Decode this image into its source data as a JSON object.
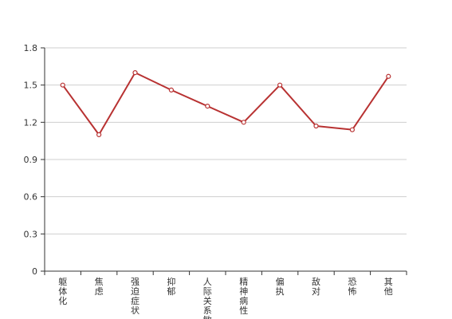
{
  "chart_data": {
    "type": "line",
    "title": "",
    "xlabel": "",
    "ylabel": "",
    "categories": [
      "躯体化",
      "焦虑",
      "强迫症状",
      "抑郁",
      "人际关系敏感",
      "精神病性",
      "偏执",
      "敌对",
      "恐怖",
      "其他"
    ],
    "y_ticks": [
      "0",
      "0.3",
      "0.6",
      "0.9",
      "1.2",
      "1.5",
      "1.8"
    ],
    "ylim": [
      0,
      1.8
    ],
    "grid": true,
    "legend": "none",
    "series": [
      {
        "values": [
          1.5,
          1.1,
          1.6,
          1.46,
          1.33,
          1.2,
          1.5,
          1.17,
          1.14,
          1.57
        ],
        "color": "#b83232",
        "marker": "circle"
      }
    ]
  }
}
